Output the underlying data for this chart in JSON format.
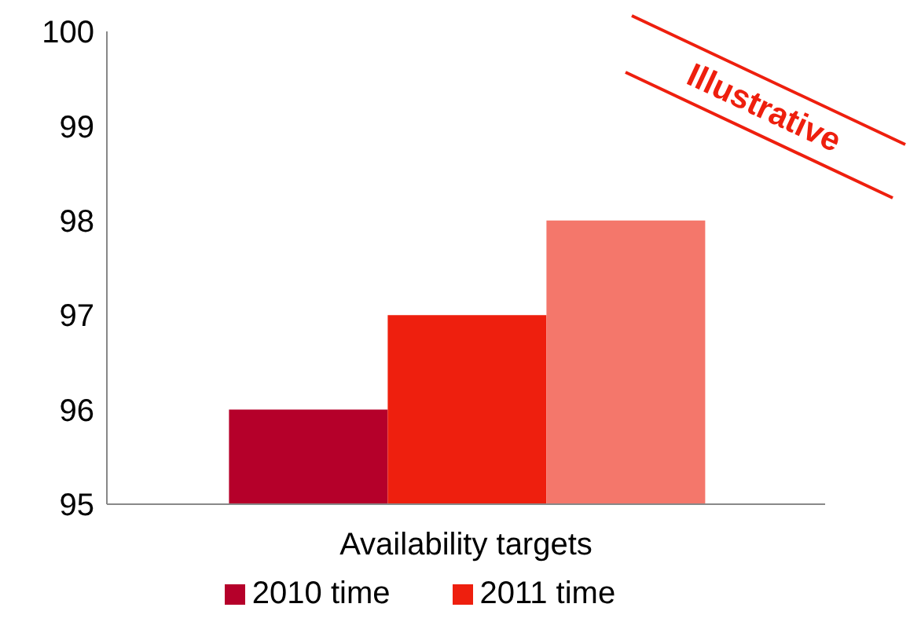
{
  "chart_data": {
    "type": "bar",
    "categories": [
      "Availability targets"
    ],
    "series": [
      {
        "name": "2010 time",
        "color": "#b5002a",
        "values": [
          96
        ]
      },
      {
        "name": "2011 time",
        "color": "#ee1f0e",
        "values": [
          97
        ]
      },
      {
        "color": "#f4776b",
        "values": [
          98
        ]
      }
    ],
    "ylim": [
      95,
      100
    ],
    "yticks": [
      95,
      96,
      97,
      98,
      99,
      100
    ],
    "grid": false,
    "legend": "bottom",
    "annotations": [
      "Illustrative"
    ]
  }
}
